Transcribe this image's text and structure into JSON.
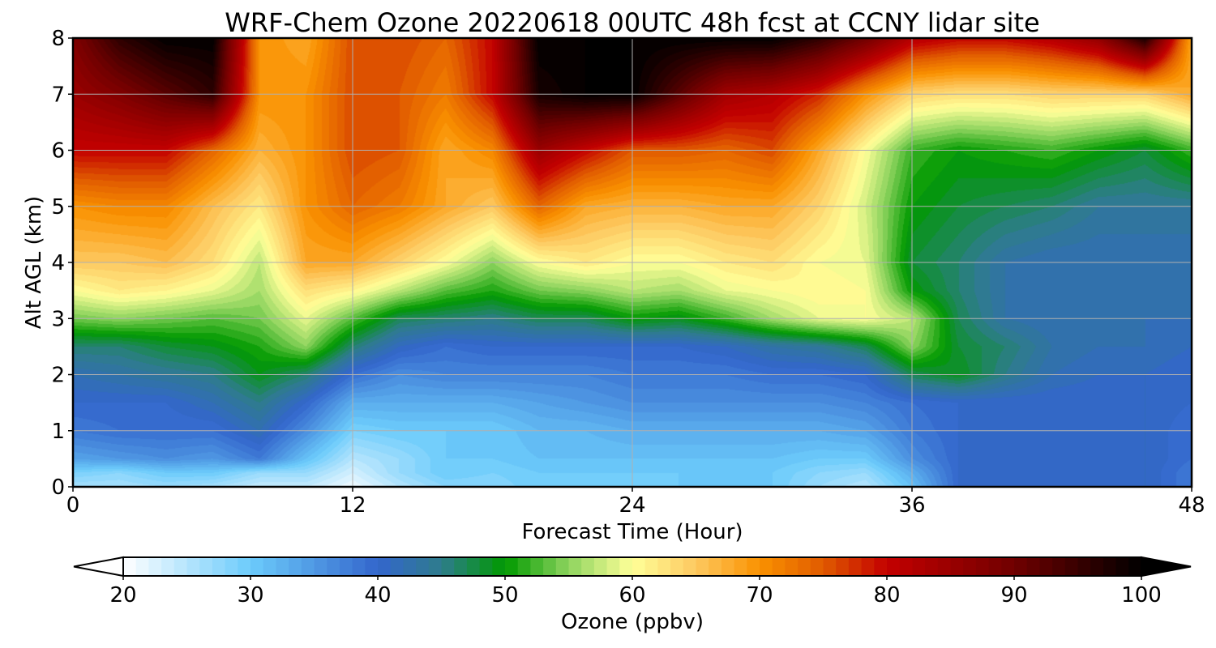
{
  "chart_data": {
    "type": "heatmap",
    "title": "WRF-Chem Ozone  20220618 00UTC 48h fcst at CCNY lidar site",
    "xlabel": "Forecast Time (Hour)",
    "ylabel": "Alt AGL (km)",
    "xlim": [
      0,
      48
    ],
    "ylim": [
      0,
      8
    ],
    "x_ticks": [
      0,
      12,
      24,
      36,
      48
    ],
    "y_ticks": [
      0,
      1,
      2,
      3,
      4,
      5,
      6,
      7,
      8
    ],
    "grid": true,
    "colorbar": {
      "label": "Ozone  (ppbv)",
      "min": 20,
      "max": 100,
      "ticks": [
        20,
        30,
        40,
        50,
        60,
        70,
        80,
        90,
        100
      ],
      "extend": "both",
      "levels": 80,
      "color_stops": [
        {
          "v": 20,
          "c": "#ffffff"
        },
        {
          "v": 30,
          "c": "#6ccbfb"
        },
        {
          "v": 40,
          "c": "#3366cc"
        },
        {
          "v": 45,
          "c": "#2e7c8c"
        },
        {
          "v": 50,
          "c": "#009900"
        },
        {
          "v": 55,
          "c": "#8ed45e"
        },
        {
          "v": 60,
          "c": "#ffff99"
        },
        {
          "v": 65,
          "c": "#fdc860"
        },
        {
          "v": 70,
          "c": "#fa9100"
        },
        {
          "v": 75,
          "c": "#e05a00"
        },
        {
          "v": 80,
          "c": "#c30000"
        },
        {
          "v": 90,
          "c": "#700000"
        },
        {
          "v": 100,
          "c": "#000000"
        }
      ]
    },
    "x": [
      0,
      2,
      4,
      6,
      8,
      10,
      12,
      14,
      16,
      18,
      20,
      22,
      24,
      26,
      28,
      30,
      32,
      34,
      36,
      38,
      40,
      42,
      44,
      46,
      48
    ],
    "y": [
      0,
      0.25,
      0.5,
      1,
      1.5,
      2,
      2.5,
      3,
      3.5,
      4,
      5,
      6,
      7,
      8
    ],
    "z": [
      [
        26,
        26,
        27,
        26,
        24,
        24,
        21,
        25,
        28,
        28,
        30,
        29,
        29,
        30,
        30,
        30,
        27,
        25,
        31,
        40,
        40,
        40,
        40,
        41,
        38
      ],
      [
        29,
        28,
        30,
        30,
        27,
        27,
        23,
        27,
        30,
        29,
        30,
        30,
        30,
        30,
        30,
        30,
        28,
        27,
        33,
        40,
        40,
        40,
        40,
        41,
        38
      ],
      [
        34,
        35,
        36,
        35,
        38,
        31,
        25,
        27,
        30,
        30,
        31,
        31,
        31,
        31,
        31,
        31,
        30,
        30,
        36,
        40,
        40,
        40,
        40,
        41,
        39
      ],
      [
        38,
        39,
        39,
        39,
        42,
        36,
        29,
        30,
        30,
        30,
        32,
        32,
        33,
        33,
        33,
        33,
        33,
        34,
        38,
        40,
        40,
        40,
        40,
        41,
        39
      ],
      [
        40,
        40,
        40,
        42,
        45,
        40,
        33,
        33,
        33,
        33,
        34,
        35,
        36,
        36,
        36,
        36,
        36,
        37,
        39,
        40,
        40,
        40,
        40,
        41,
        40
      ],
      [
        42,
        43,
        44,
        45,
        49,
        46,
        39,
        36,
        37,
        37,
        37,
        37,
        38,
        38,
        38,
        39,
        39,
        40,
        47,
        49,
        45,
        42,
        41,
        41,
        40
      ],
      [
        46,
        46,
        48,
        49,
        51,
        55,
        46,
        41,
        39,
        40,
        40,
        40,
        40,
        40,
        41,
        43,
        44,
        47,
        55,
        48,
        46,
        43,
        42,
        42,
        41
      ],
      [
        54,
        55,
        54,
        53,
        54,
        59,
        53,
        47,
        46,
        45,
        47,
        47,
        50,
        49,
        52,
        56,
        59,
        60,
        57,
        47,
        43,
        42,
        42,
        42,
        42
      ],
      [
        60,
        62,
        61,
        59,
        56,
        63,
        61,
        57,
        53,
        51,
        54,
        55,
        57,
        56,
        59,
        60,
        61,
        60,
        50,
        46,
        43,
        42,
        42,
        42,
        42
      ],
      [
        65,
        65,
        66,
        63,
        57,
        68,
        68,
        64,
        60,
        55,
        60,
        62,
        60,
        60,
        62,
        63,
        60,
        59,
        48,
        46,
        43,
        42,
        42,
        42,
        42
      ],
      [
        70,
        71,
        71,
        66,
        62,
        70,
        74,
        72,
        68,
        65,
        74,
        68,
        67,
        67,
        68,
        68,
        64,
        58,
        50,
        48,
        47,
        46,
        44,
        44,
        44
      ],
      [
        80,
        80,
        80,
        74,
        67,
        70,
        76,
        75,
        68,
        71,
        85,
        80,
        75,
        75,
        74,
        76,
        68,
        60,
        52,
        50,
        51,
        52,
        50,
        48,
        52
      ],
      [
        85,
        88,
        92,
        96,
        70,
        70,
        76,
        75,
        72,
        80,
        98,
        100,
        100,
        92,
        84,
        82,
        78,
        70,
        64,
        63,
        63,
        64,
        64,
        64,
        68
      ],
      [
        88,
        96,
        100,
        100,
        70,
        68,
        76,
        76,
        74,
        80,
        100,
        100,
        100,
        100,
        100,
        100,
        96,
        90,
        82,
        80,
        80,
        82,
        86,
        98,
        68
      ]
    ]
  }
}
